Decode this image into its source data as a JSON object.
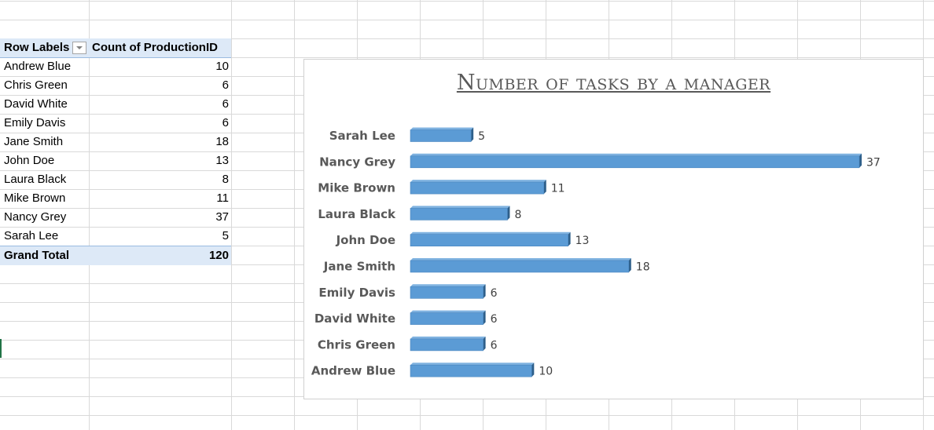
{
  "pivot": {
    "header": {
      "row_labels": "Row Labels",
      "value_header": "Count of ProductionID"
    },
    "rows": [
      {
        "label": "Andrew Blue",
        "value": "10"
      },
      {
        "label": "Chris Green",
        "value": "6"
      },
      {
        "label": "David White",
        "value": "6"
      },
      {
        "label": "Emily Davis",
        "value": "6"
      },
      {
        "label": "Jane Smith",
        "value": "18"
      },
      {
        "label": "John Doe",
        "value": "13"
      },
      {
        "label": "Laura Black",
        "value": "8"
      },
      {
        "label": "Mike Brown",
        "value": "11"
      },
      {
        "label": "Nancy Grey",
        "value": "37"
      },
      {
        "label": "Sarah Lee",
        "value": "5"
      }
    ],
    "total": {
      "label": "Grand Total",
      "value": "120"
    }
  },
  "chart_data": {
    "type": "bar",
    "orientation": "horizontal",
    "title": "Number of tasks by a manager",
    "categories": [
      "Sarah Lee",
      "Nancy Grey",
      "Mike Brown",
      "Laura Black",
      "John Doe",
      "Jane Smith",
      "Emily Davis",
      "David White",
      "Chris Green",
      "Andrew Blue"
    ],
    "values": [
      5,
      37,
      11,
      8,
      13,
      18,
      6,
      6,
      6,
      10
    ],
    "xlim": [
      0,
      37
    ],
    "grid": false,
    "legend": "none",
    "bar_color": "#5b9bd5",
    "bar_shadow_color": "#2e5f8a",
    "data_labels": true
  }
}
